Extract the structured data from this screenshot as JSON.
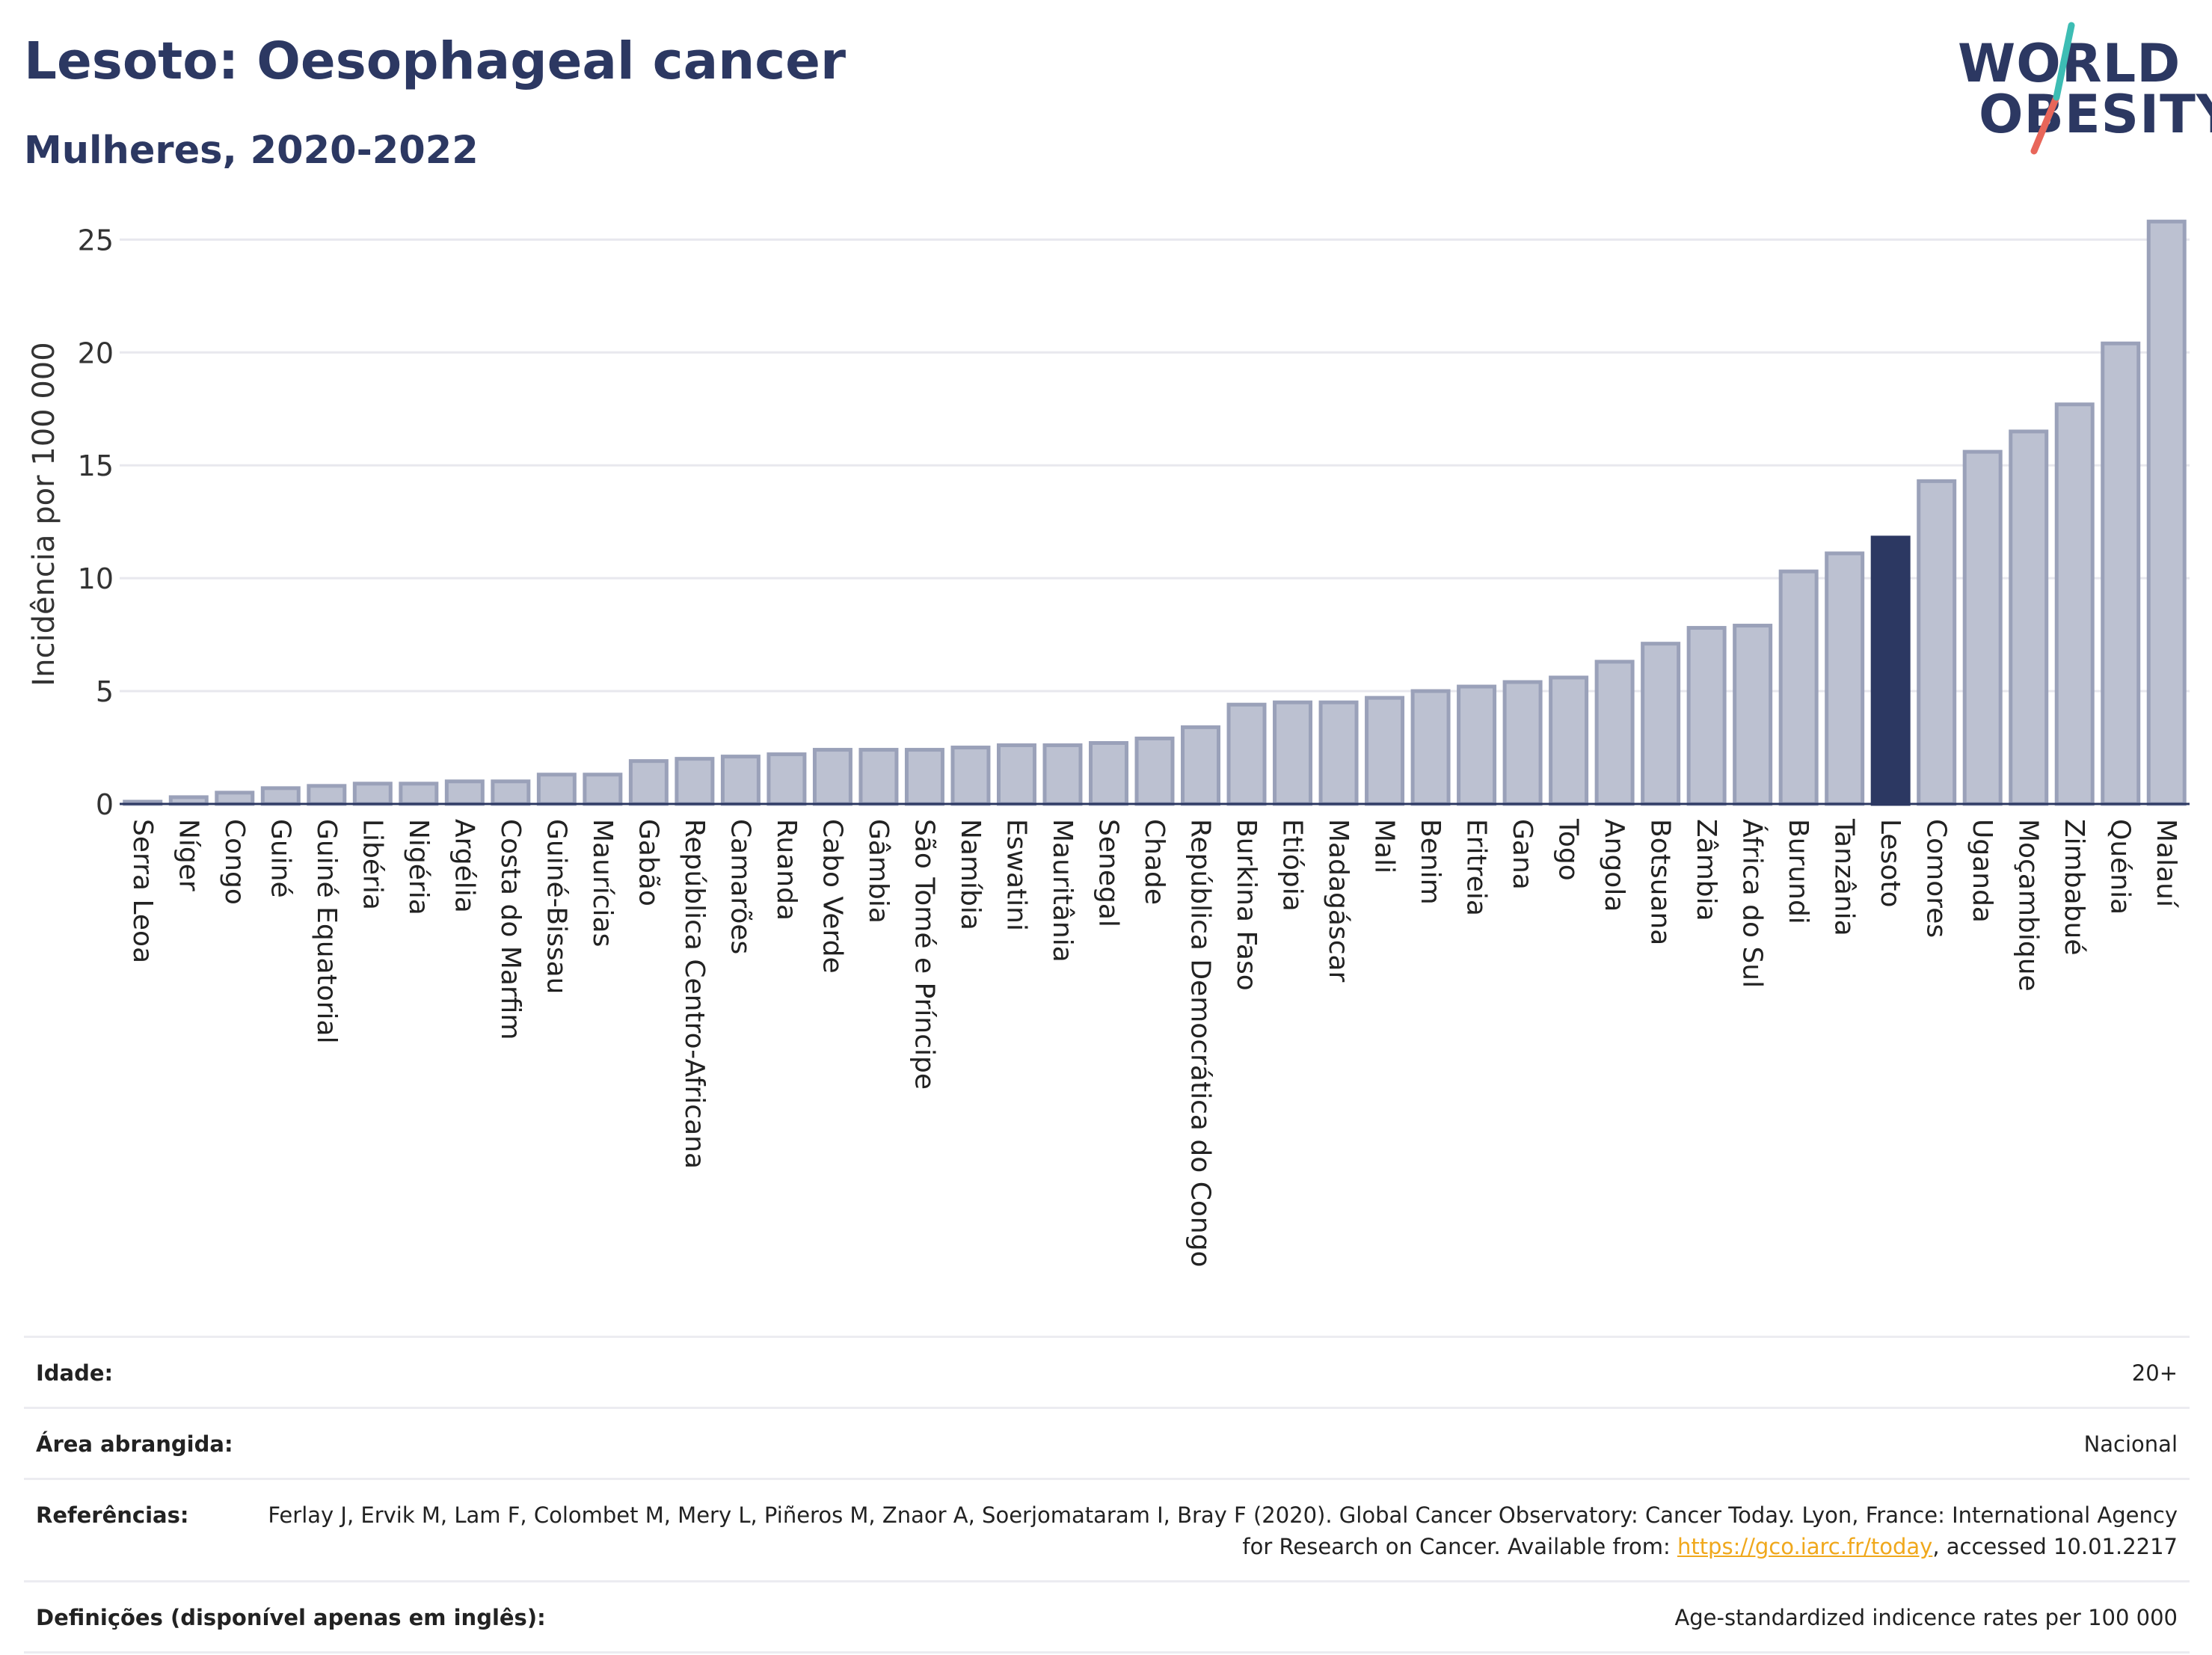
{
  "header": {
    "title": "Lesoto: Oesophageal cancer",
    "subtitle": "Mulheres, 2020-2022"
  },
  "logo": {
    "line1": "WORLD",
    "line2": "OBESITY",
    "slash_colors": [
      "#e8665a",
      "#3dbdb4"
    ]
  },
  "chart_data": {
    "type": "bar",
    "ylabel": "Incidência por 100 000",
    "ylim": [
      0,
      27
    ],
    "yticks": [
      0,
      5,
      10,
      15,
      20,
      25
    ],
    "grid": true,
    "highlight": "Lesoto",
    "colors": {
      "bar": "#bcc1d1",
      "bar_border": "#9aa1b9",
      "highlight": "#2c3862"
    },
    "categories": [
      "Serra Leoa",
      "Níger",
      "Congo",
      "Guiné",
      "Guiné Equatorial",
      "Libéria",
      "Nigéria",
      "Argélia",
      "Costa do Marfim",
      "Guiné-Bissau",
      "Maurícias",
      "Gabão",
      "República Centro-Africana",
      "Camarões",
      "Ruanda",
      "Cabo Verde",
      "Gâmbia",
      "São Tomé e Príncipe",
      "Namíbia",
      "Eswatini",
      "Mauritânia",
      "Senegal",
      "Chade",
      "República Democrática do Congo",
      "Burkina Faso",
      "Etiópia",
      "Madagáscar",
      "Mali",
      "Benim",
      "Eritreia",
      "Gana",
      "Togo",
      "Angola",
      "Botsuana",
      "Zâmbia",
      "África do Sul",
      "Burundi",
      "Tanzânia",
      "Lesoto",
      "Comores",
      "Uganda",
      "Moçambique",
      "Zimbabué",
      "Quénia",
      "Malauí"
    ],
    "values": [
      0.1,
      0.3,
      0.5,
      0.7,
      0.8,
      0.9,
      0.9,
      1.0,
      1.0,
      1.3,
      1.3,
      1.9,
      2.0,
      2.1,
      2.2,
      2.4,
      2.4,
      2.4,
      2.5,
      2.6,
      2.6,
      2.7,
      2.9,
      3.4,
      4.4,
      4.5,
      4.5,
      4.7,
      5.0,
      5.2,
      5.4,
      5.6,
      6.3,
      7.1,
      7.8,
      7.9,
      10.3,
      11.1,
      11.8,
      14.3,
      15.6,
      16.5,
      17.7,
      20.4,
      25.8
    ]
  },
  "info": [
    {
      "label": "Idade:",
      "value": "20+"
    },
    {
      "label": "Área abrangida:",
      "value": "Nacional"
    },
    {
      "label": "Referências:",
      "value_before_link": "Ferlay J, Ervik M, Lam F, Colombet M, Mery L, Piñeros M, Znaor A, Soerjomataram I, Bray F (2020). Global Cancer Observatory: Cancer Today. Lyon, France: International Agency for Research on Cancer. Available from: ",
      "link": "https://gco.iarc.fr/today",
      "value_after_link": ", accessed 10.01.2217"
    },
    {
      "label": "Definições (disponível apenas em inglês):",
      "value": "Age-standardized indicence rates per 100 000"
    }
  ]
}
